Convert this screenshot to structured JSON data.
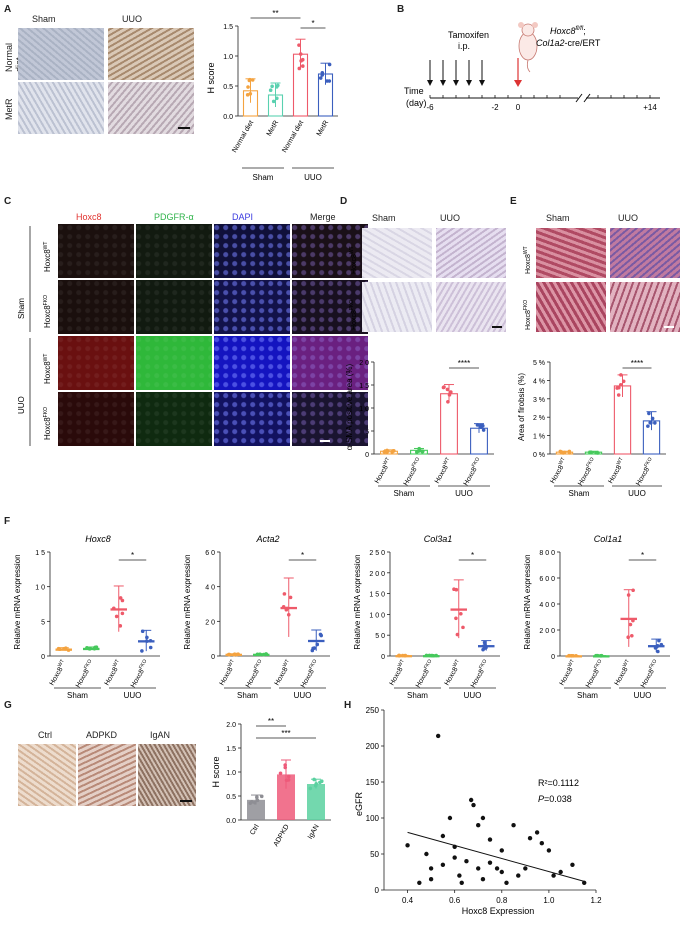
{
  "panels": {
    "A": "A",
    "B": "B",
    "C": "C",
    "D": "D",
    "E": "E",
    "F": "F",
    "G": "G",
    "H": "H"
  },
  "A": {
    "col_sham": "Sham",
    "col_uuo": "UUO",
    "row1": "Normal\ndiet",
    "row2": "MetR",
    "chart": {
      "type": "bar",
      "ylabel": "H score",
      "ylim": [
        0,
        1.5
      ],
      "yticks": [
        "0.0",
        "0.5",
        "1.0",
        "1.5"
      ],
      "categories": [
        "Normal diet",
        "MetR",
        "Normal diet",
        "MetR"
      ],
      "values": [
        0.42,
        0.35,
        1.03,
        0.7
      ],
      "errors": [
        0.2,
        0.2,
        0.25,
        0.18
      ],
      "colors": [
        "#f4a340",
        "#5ad1b0",
        "#ee5a6a",
        "#3b5fbe"
      ],
      "groups": [
        "Sham",
        "UUO"
      ],
      "sig": [
        {
          "from": 0,
          "to": 2,
          "text": "**"
        },
        {
          "from": 2,
          "to": 3,
          "text": "*"
        }
      ]
    }
  },
  "B": {
    "tamoxifen": "Tamoxifen",
    "ip": "i.p.",
    "genotype_l1": "Hoxc8",
    "genotype_sup": "fl/fl",
    "genotype_l1b": ";",
    "genotype_l2a": "Col1a2",
    "genotype_l2b": "-cre/ERT",
    "time": "Time",
    "day": "(day)",
    "ticks": [
      "-6",
      "-2",
      "0",
      "+14"
    ]
  },
  "C": {
    "headers": [
      "Hoxc8",
      "PDGFR-α",
      "DAPI",
      "Merge"
    ],
    "header_colors": [
      "#e0322e",
      "#2fb34a",
      "#3a3adf",
      "#222222"
    ],
    "group1": "Sham",
    "group2": "UUO",
    "g_wt": "Hoxc8",
    "sup_wt": "WT",
    "g_fko": "Hoxc8",
    "sup_fko": "FKO"
  },
  "D": {
    "col_sham": "Sham",
    "col_uuo": "UUO",
    "chart": {
      "type": "bar",
      "ylabel": "α-SMA  positive area (%)",
      "ylim": [
        0,
        20
      ],
      "yticks": [
        "0",
        "5",
        "1 0",
        "1 5",
        "2 0"
      ],
      "categories_base": "Hoxc8",
      "categories_sup": [
        "WT",
        "FKO",
        "WT",
        "FKO"
      ],
      "values": [
        0.6,
        0.8,
        13.1,
        5.6
      ],
      "errors": [
        0.3,
        0.4,
        2.0,
        1.0
      ],
      "colors": [
        "#f4a340",
        "#46c95c",
        "#ee5a6a",
        "#3b5fbe"
      ],
      "groups": [
        "Sham",
        "UUO"
      ],
      "sig": "****"
    }
  },
  "E": {
    "col_sham": "Sham",
    "col_uuo": "UUO",
    "chart": {
      "type": "bar",
      "ylabel": "Area of firobsis (%)",
      "ylim": [
        0,
        5
      ],
      "yticks": [
        "0 %",
        "1 %",
        "2 %",
        "3 %",
        "4 %",
        "5 %"
      ],
      "values": [
        0.1,
        0.1,
        3.7,
        1.8
      ],
      "errors": [
        0.05,
        0.05,
        0.6,
        0.5
      ],
      "colors": [
        "#f4a340",
        "#46c95c",
        "#ee5a6a",
        "#3b5fbe"
      ],
      "groups": [
        "Sham",
        "UUO"
      ],
      "sig": "****"
    }
  },
  "F": {
    "charts": [
      {
        "title": "Hoxc8",
        "ylabel": "Relative mRNA expression",
        "ylim": [
          0,
          15
        ],
        "yticks": [
          "0",
          "5",
          "1 0",
          "1 5"
        ],
        "values": [
          1.0,
          1.1,
          6.8,
          2.2
        ],
        "errors": [
          0.2,
          0.2,
          3.3,
          1.5
        ]
      },
      {
        "title": "Acta2",
        "ylabel": "Relative mRNA expression",
        "ylim": [
          0,
          60
        ],
        "yticks": [
          "0",
          "2 0",
          "4 0",
          "6 0"
        ],
        "values": [
          1.0,
          1.0,
          28,
          9
        ],
        "errors": [
          0.3,
          0.3,
          17,
          6
        ]
      },
      {
        "title": "Col3a1",
        "ylabel": "Relative mRNA expression",
        "ylim": [
          0,
          250
        ],
        "yticks": [
          "0",
          "5 0",
          "1 0 0",
          "1 5 0",
          "2 0 0",
          "2 5 0"
        ],
        "values": [
          1.0,
          1.0,
          113,
          25
        ],
        "errors": [
          0.5,
          0.5,
          70,
          12
        ]
      },
      {
        "title": "Col1a1",
        "ylabel": "Relative mRNA expression",
        "ylim": [
          0,
          800
        ],
        "yticks": [
          "0",
          "2 0 0",
          "4 0 0",
          "6 0 0",
          "8 0 0"
        ],
        "values": [
          2,
          2,
          290,
          80
        ],
        "errors": [
          1,
          1,
          220,
          50
        ]
      }
    ],
    "colors": [
      "#f4a340",
      "#46c95c",
      "#ee5a6a",
      "#3b5fbe"
    ],
    "groups": [
      "Sham",
      "UUO"
    ],
    "sig": "*"
  },
  "G": {
    "cols": [
      "Ctrl",
      "ADPKD",
      "IgAN"
    ],
    "chart": {
      "type": "bar",
      "ylabel": "H score",
      "ylim": [
        0,
        2.0
      ],
      "yticks": [
        "0.0",
        "0.5",
        "1.0",
        "1.5",
        "2.0"
      ],
      "categories": [
        "Ctrl",
        "ADPKD",
        "IgAN"
      ],
      "values": [
        0.42,
        0.95,
        0.75
      ],
      "errors": [
        0.1,
        0.3,
        0.1
      ],
      "colors": [
        "#8e8e94",
        "#ee5a7a",
        "#5ad1a0"
      ],
      "sig": [
        {
          "from": 0,
          "to": 1,
          "text": "**"
        },
        {
          "from": 0,
          "to": 2,
          "text": "***"
        }
      ]
    }
  },
  "H": {
    "chart": {
      "type": "scatter",
      "xlabel": "Hoxc8 Expression",
      "ylabel": "eGFR",
      "xlim": [
        0.3,
        1.2
      ],
      "ylim": [
        0,
        250
      ],
      "xticks": [
        "0.4",
        "0.6",
        "0.8",
        "1.0",
        "1.2"
      ],
      "yticks": [
        "0",
        "50",
        "100",
        "150",
        "200",
        "250"
      ],
      "r2": "R²=0.1112",
      "p_label": "P",
      "p_value": "=0.038",
      "fit": [
        [
          0.4,
          80
        ],
        [
          1.15,
          12
        ]
      ],
      "points": [
        [
          0.4,
          62
        ],
        [
          0.45,
          10
        ],
        [
          0.48,
          50
        ],
        [
          0.5,
          15
        ],
        [
          0.5,
          30
        ],
        [
          0.53,
          214
        ],
        [
          0.55,
          35
        ],
        [
          0.55,
          75
        ],
        [
          0.58,
          100
        ],
        [
          0.6,
          45
        ],
        [
          0.6,
          60
        ],
        [
          0.62,
          20
        ],
        [
          0.63,
          10
        ],
        [
          0.65,
          40
        ],
        [
          0.67,
          125
        ],
        [
          0.68,
          118
        ],
        [
          0.7,
          90
        ],
        [
          0.7,
          30
        ],
        [
          0.72,
          100
        ],
        [
          0.72,
          15
        ],
        [
          0.75,
          70
        ],
        [
          0.75,
          38
        ],
        [
          0.78,
          30
        ],
        [
          0.8,
          55
        ],
        [
          0.8,
          25
        ],
        [
          0.82,
          10
        ],
        [
          0.85,
          90
        ],
        [
          0.87,
          20
        ],
        [
          0.9,
          30
        ],
        [
          0.92,
          72
        ],
        [
          0.95,
          80
        ],
        [
          0.97,
          65
        ],
        [
          1.0,
          55
        ],
        [
          1.02,
          20
        ],
        [
          1.05,
          25
        ],
        [
          1.1,
          35
        ],
        [
          1.15,
          10
        ]
      ]
    }
  }
}
